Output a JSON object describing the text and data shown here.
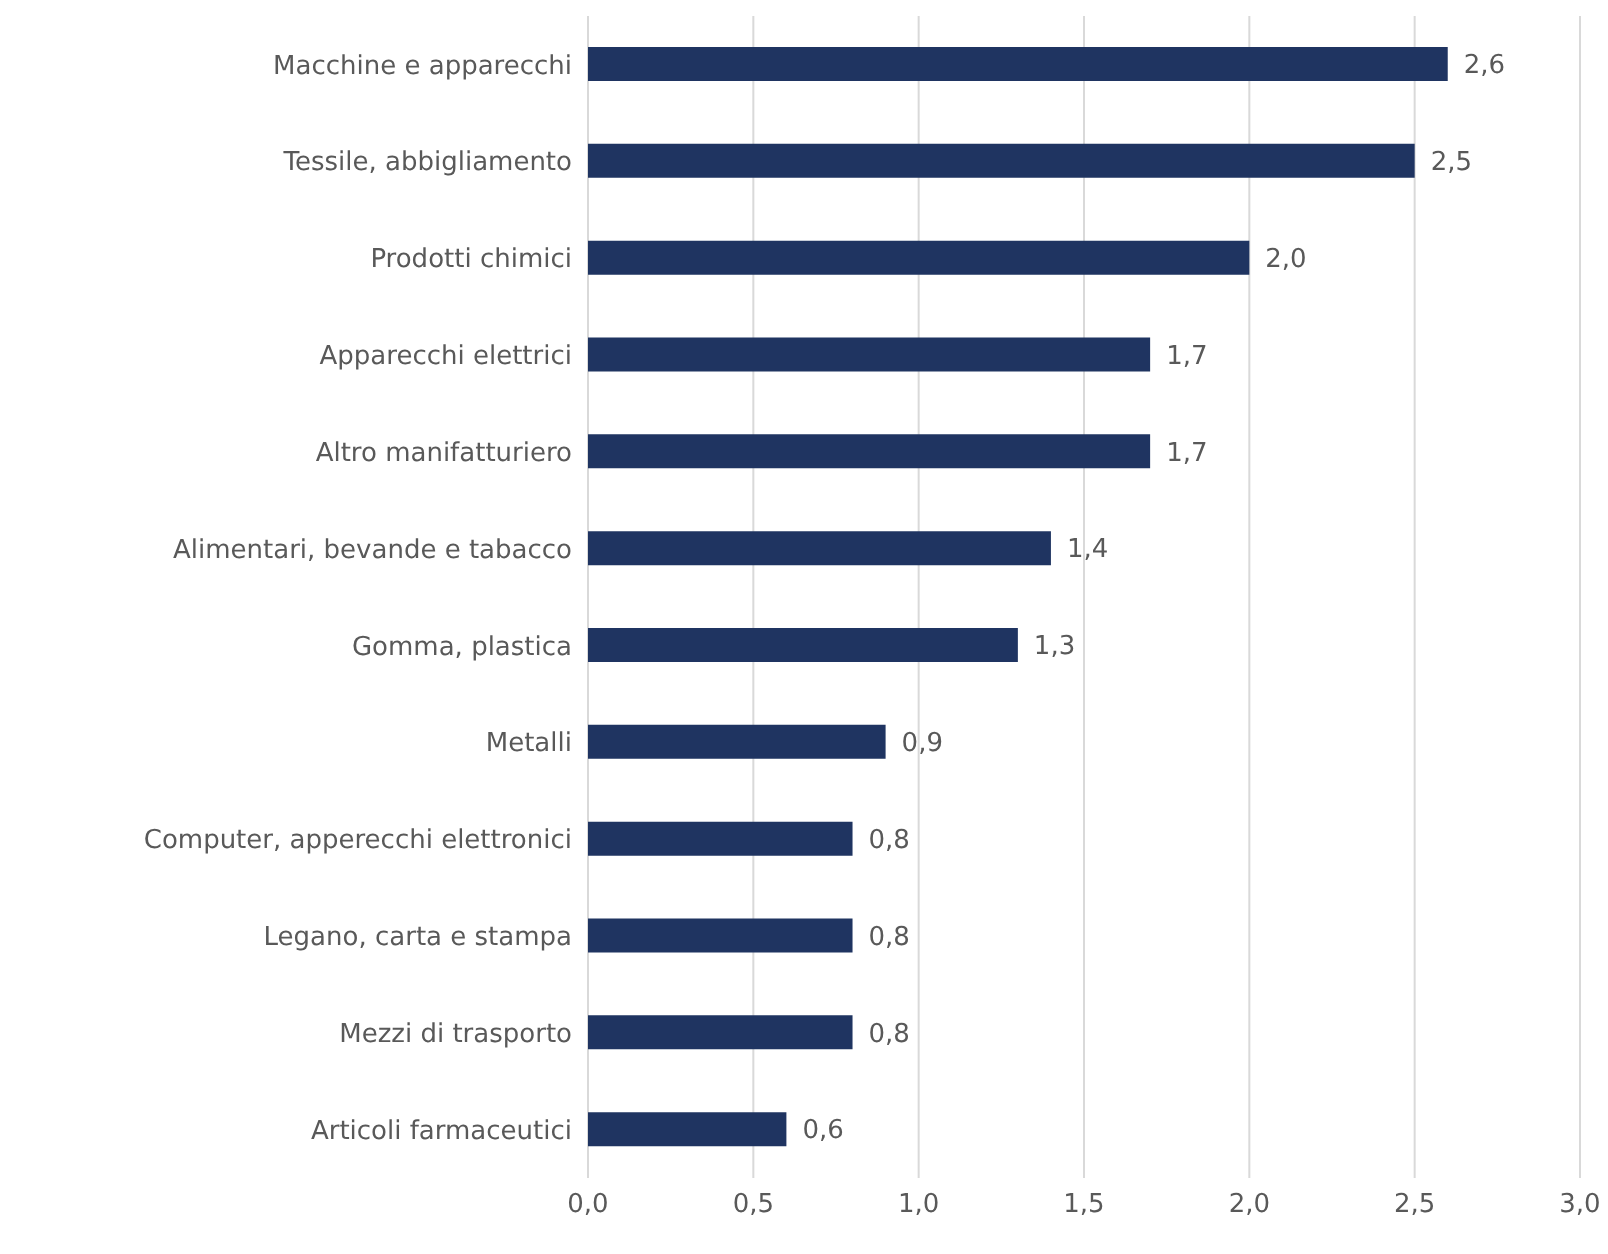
{
  "chart_data": {
    "type": "bar",
    "orientation": "horizontal",
    "categories": [
      "Macchine e apparecchi",
      "Tessile, abbigliamento",
      "Prodotti chimici",
      "Apparecchi elettrici",
      "Altro manifatturiero",
      "Alimentari, bevande e tabacco",
      "Gomma, plastica",
      "Metalli",
      "Computer, apperecchi elettronici",
      "Legano, carta e stampa",
      "Mezzi di trasporto",
      "Articoli farmaceutici"
    ],
    "values": [
      2.6,
      2.5,
      2.0,
      1.7,
      1.7,
      1.4,
      1.3,
      0.9,
      0.8,
      0.8,
      0.8,
      0.6
    ],
    "value_labels": [
      "2,6",
      "2,5",
      "2,0",
      "1,7",
      "1,7",
      "1,4",
      "1,3",
      "0,9",
      "0,8",
      "0,8",
      "0,8",
      "0,6"
    ],
    "color": "#1f3461",
    "xlim": [
      0,
      3
    ],
    "xticks": [
      {
        "value": 0,
        "label": "0,0"
      },
      {
        "value": 0.5,
        "label": "0,5"
      },
      {
        "value": 1,
        "label": "1,0"
      },
      {
        "value": 1.5,
        "label": "1,5"
      },
      {
        "value": 2,
        "label": "2,0"
      },
      {
        "value": 2.5,
        "label": "2,5"
      },
      {
        "value": 3,
        "label": "3,0"
      }
    ],
    "grid": "x"
  }
}
